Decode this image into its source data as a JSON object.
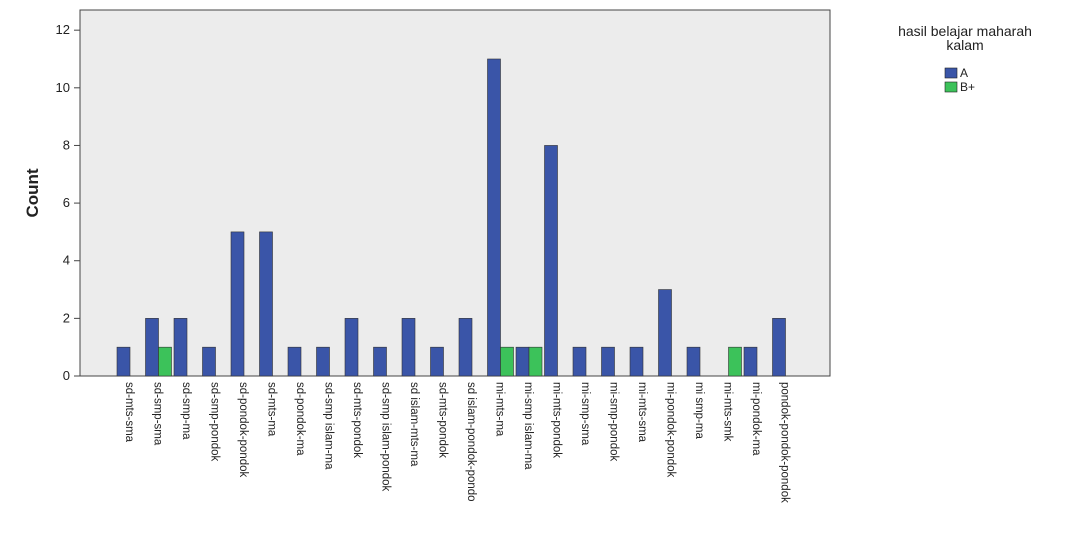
{
  "chart_data": {
    "type": "bar",
    "ylabel": "Count",
    "legend_title": "hasil belajar maharah kalam",
    "legend": "right",
    "categories": [
      "sd-mts-sma",
      "sd-smp-sma",
      "sd-smp-ma",
      "sd-smp-pondok",
      "sd-pondok-pondok",
      "sd-mts-ma",
      "sd-pondok-ma",
      "sd-smp islam-ma",
      "sd-mts-pondok",
      "sd-smp islam-pondok",
      "sd islam-mts-ma",
      "sd-mts-pondok",
      "sd islam-pondok-pondo",
      "mi-mts-ma",
      "mi-smp islam-ma",
      "mi-mts-pondok",
      "mi-smp-sma",
      "mi-smp-pondok",
      "mi-mts-sma",
      "mi-pondok-pondok",
      "mi smp-ma",
      "mi-mts-smk",
      "mi-pondok-ma",
      "pondok-pondok-pondok"
    ],
    "series": [
      {
        "name": "A",
        "color": "#3a55a8",
        "values": [
          1,
          2,
          2,
          1,
          5,
          5,
          1,
          1,
          2,
          1,
          2,
          1,
          2,
          11,
          1,
          8,
          1,
          1,
          1,
          3,
          1,
          0,
          1,
          2
        ]
      },
      {
        "name": "B+",
        "color": "#3cc25a",
        "values": [
          0,
          1,
          0,
          0,
          0,
          0,
          0,
          0,
          0,
          0,
          0,
          0,
          0,
          1,
          1,
          0,
          0,
          0,
          0,
          0,
          0,
          1,
          0,
          0
        ]
      }
    ],
    "ylim": [
      0,
      12.7
    ],
    "yticks": [
      0,
      2,
      4,
      6,
      8,
      10,
      12
    ]
  }
}
